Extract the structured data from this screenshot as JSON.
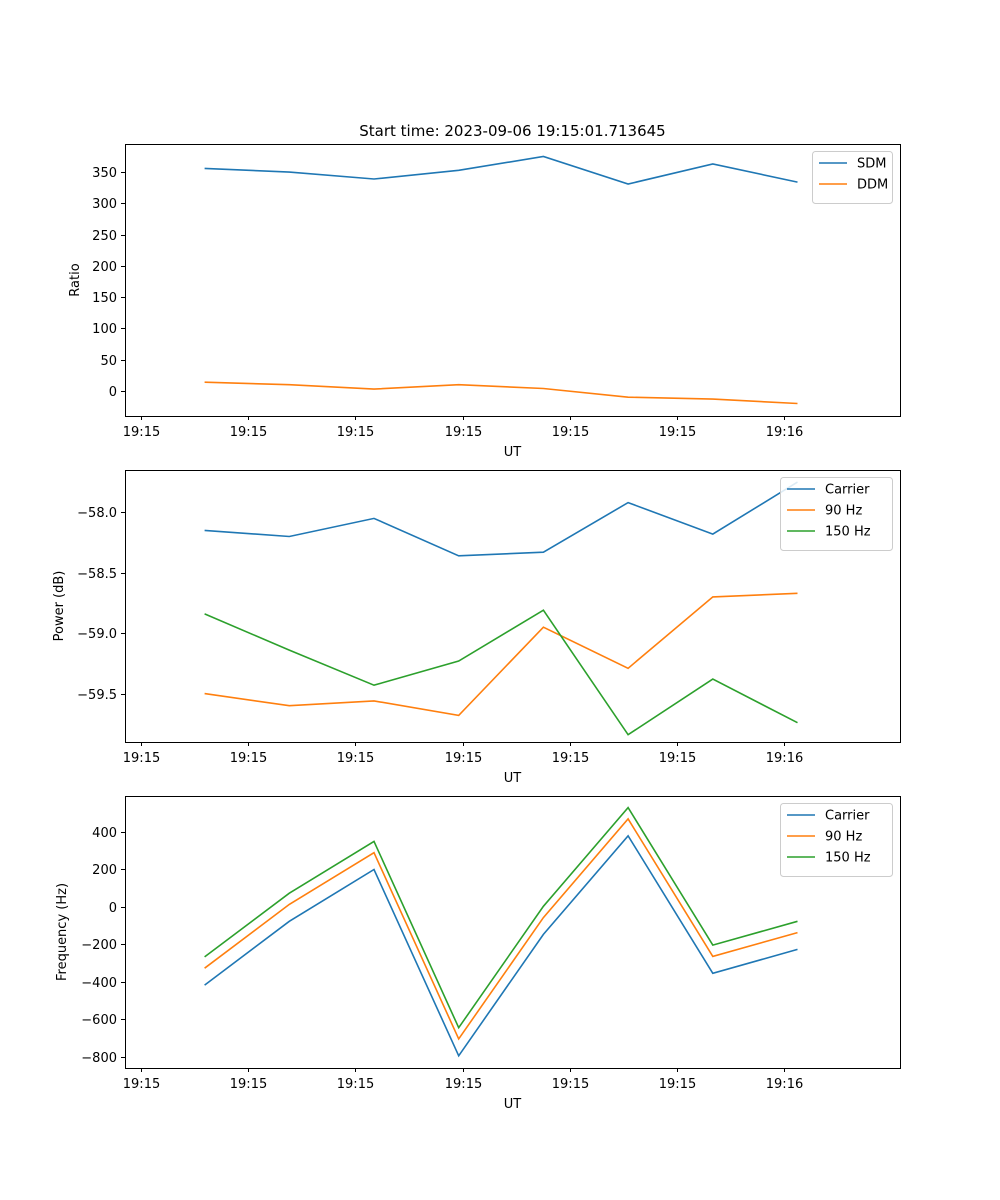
{
  "chart_data": [
    {
      "type": "line",
      "title": "Start time: 2023-09-06 19:15:01.713645",
      "xlabel": "UT",
      "ylabel": "Ratio",
      "x_tick_labels": [
        "19:15",
        "19:15",
        "19:15",
        "19:15",
        "19:15",
        "19:15",
        "19:16"
      ],
      "y_ticks": [
        0,
        50,
        100,
        150,
        200,
        250,
        300,
        350
      ],
      "y_tick_labels": [
        "0",
        "50",
        "100",
        "150",
        "200",
        "250",
        "300",
        "350"
      ],
      "ylim": [
        -40,
        395
      ],
      "xlim": [
        -0.19,
        8.96
      ],
      "x": [
        0.75,
        1.75,
        2.75,
        3.75,
        4.75,
        5.75,
        6.75,
        7.75
      ],
      "legend_position": "top-right",
      "series": [
        {
          "name": "SDM",
          "color": "#1f77b4",
          "values": [
            356,
            350,
            339,
            353,
            375,
            331,
            363,
            334
          ]
        },
        {
          "name": "DDM",
          "color": "#ff7f0e",
          "values": [
            14,
            10,
            3,
            10,
            4,
            -10,
            -13,
            -20
          ]
        }
      ]
    },
    {
      "type": "line",
      "xlabel": "UT",
      "ylabel": "Power (dB)",
      "x_tick_labels": [
        "19:15",
        "19:15",
        "19:15",
        "19:15",
        "19:15",
        "19:15",
        "19:16"
      ],
      "y_ticks": [
        -59.5,
        -59.0,
        -58.5,
        -58.0
      ],
      "y_tick_labels": [
        "−59.5",
        "−59.0",
        "−58.5",
        "−58.0"
      ],
      "ylim": [
        -59.9,
        -57.65
      ],
      "xlim": [
        -0.19,
        8.96
      ],
      "x": [
        0.75,
        1.75,
        2.75,
        3.75,
        4.75,
        5.75,
        6.75,
        7.75
      ],
      "legend_position": "top-right",
      "series": [
        {
          "name": "Carrier",
          "color": "#1f77b4",
          "values": [
            -58.15,
            -58.2,
            -58.05,
            -58.36,
            -58.33,
            -57.92,
            -58.18,
            -57.75
          ]
        },
        {
          "name": "90 Hz",
          "color": "#ff7f0e",
          "values": [
            -59.5,
            -59.6,
            -59.56,
            -59.68,
            -58.95,
            -59.29,
            -58.7,
            -58.67
          ]
        },
        {
          "name": "150 Hz",
          "color": "#2ca02c",
          "values": [
            -58.84,
            -59.14,
            -59.43,
            -59.23,
            -58.81,
            -59.84,
            -59.38,
            -59.74
          ]
        }
      ]
    },
    {
      "type": "line",
      "xlabel": "UT",
      "ylabel": "Frequency (Hz)",
      "x_tick_labels": [
        "19:15",
        "19:15",
        "19:15",
        "19:15",
        "19:15",
        "19:15",
        "19:16"
      ],
      "y_ticks": [
        -800,
        -600,
        -400,
        -200,
        0,
        200,
        400
      ],
      "y_tick_labels": [
        "−800",
        "−600",
        "−400",
        "−200",
        "0",
        "200",
        "400"
      ],
      "ylim": [
        -860,
        590
      ],
      "xlim": [
        -0.19,
        8.96
      ],
      "x": [
        0.75,
        1.75,
        2.75,
        3.75,
        4.75,
        5.75,
        6.75,
        7.75
      ],
      "legend_position": "top-right",
      "series": [
        {
          "name": "Carrier",
          "color": "#1f77b4",
          "values": [
            -418,
            -78,
            198,
            -795,
            -148,
            378,
            -355,
            -228
          ]
        },
        {
          "name": "90 Hz",
          "color": "#ff7f0e",
          "values": [
            -328,
            12,
            288,
            -705,
            -58,
            468,
            -265,
            -138
          ]
        },
        {
          "name": "150 Hz",
          "color": "#2ca02c",
          "values": [
            -268,
            72,
            348,
            -645,
            2,
            528,
            -205,
            -78
          ]
        }
      ]
    }
  ]
}
